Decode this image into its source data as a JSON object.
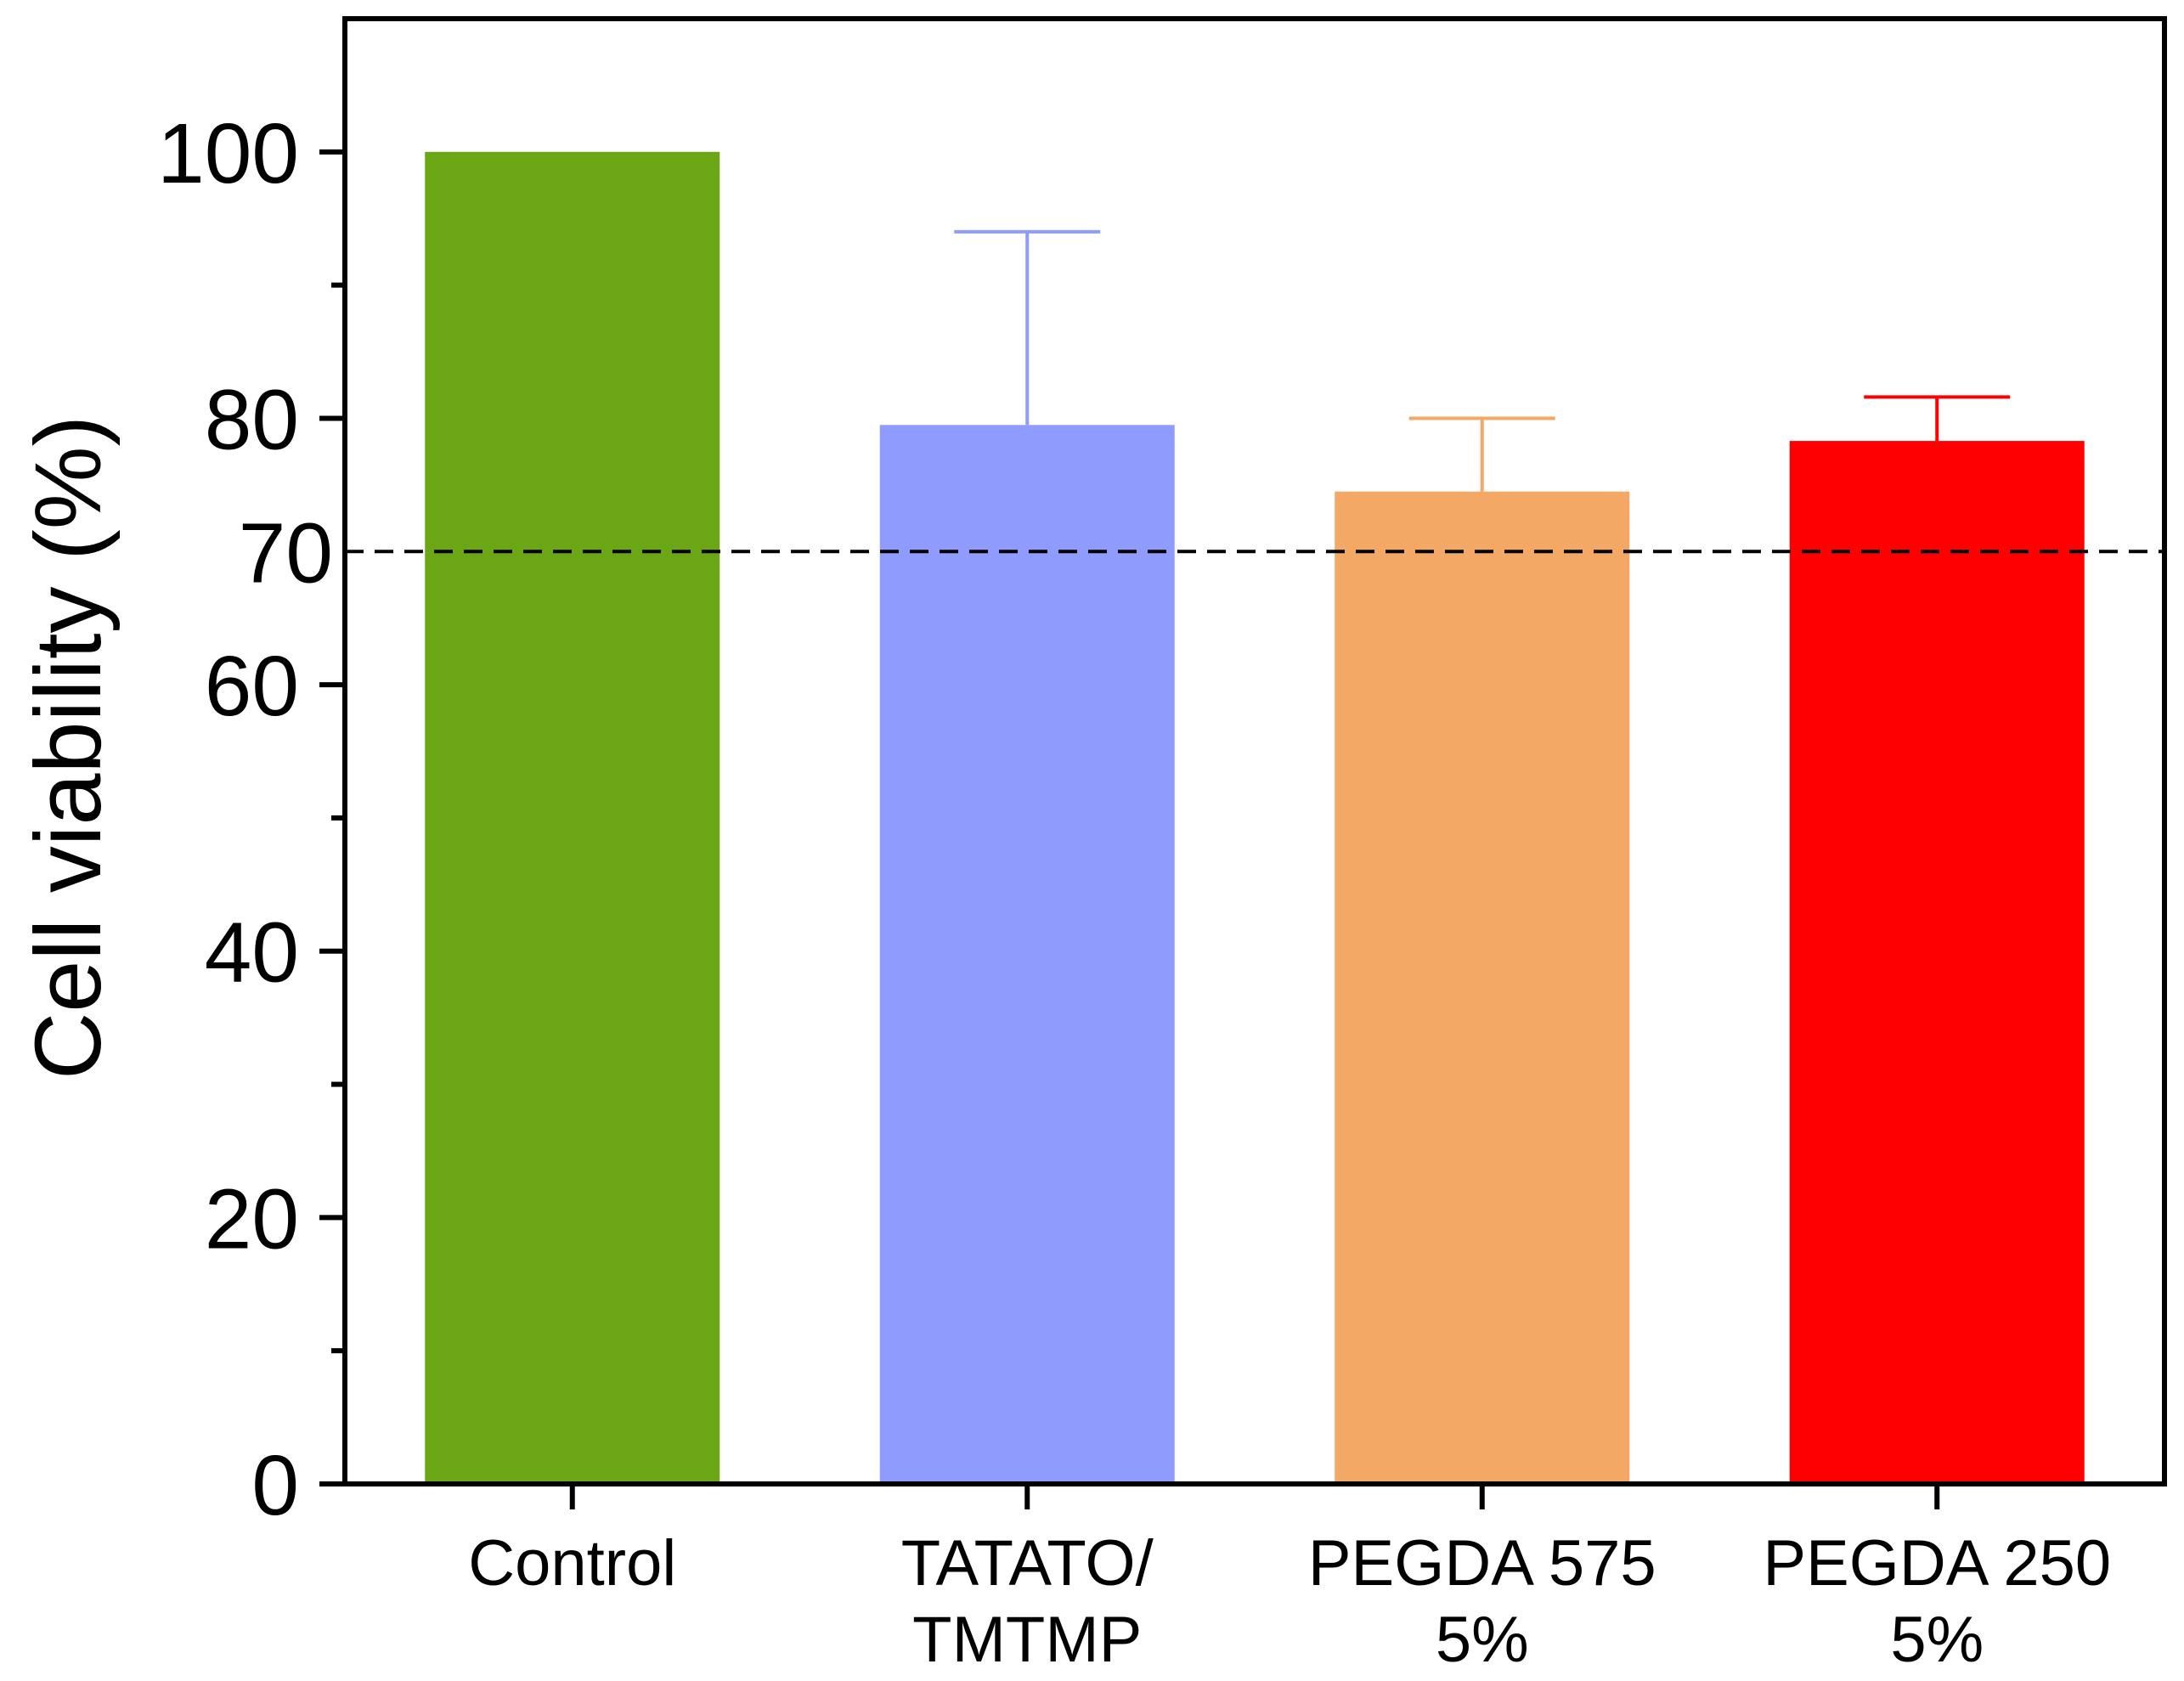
{
  "chart_data": {
    "type": "bar",
    "title": "",
    "xlabel": "",
    "ylabel": "Cell viability (%)",
    "ylim": [
      0,
      110
    ],
    "yticks_major": [
      0,
      20,
      40,
      60,
      80,
      100
    ],
    "yticks_minor": [
      10,
      30,
      50,
      90
    ],
    "grid": false,
    "categories": [
      [
        "Control"
      ],
      [
        "TATATO/",
        "TMTMP"
      ],
      [
        "PEGDA 575",
        "5%"
      ],
      [
        "PEGDA 250",
        "5%"
      ]
    ],
    "values": [
      100,
      79.5,
      74.5,
      78.3
    ],
    "errors": [
      0,
      14.5,
      5.5,
      3.3
    ],
    "colors": [
      "#6ba614",
      "#8f9cfd",
      "#f3a866",
      "#ff0000"
    ],
    "reference_line": {
      "value": 70,
      "label": "70",
      "style": "dashed",
      "color": "#000000"
    }
  }
}
